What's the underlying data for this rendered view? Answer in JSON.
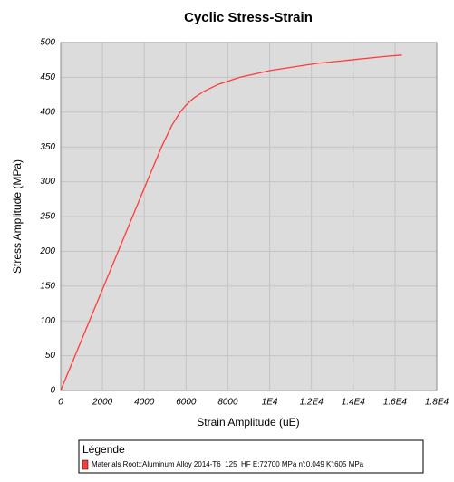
{
  "chart_data": {
    "type": "line",
    "title": "Cyclic Stress-Strain",
    "x_label": "Strain Amplitude (uE)",
    "y_label": "Stress Amplitude (MPa)",
    "legend_title": "Légende",
    "legend": "bottom",
    "grid": true,
    "xlim": [
      0,
      18000
    ],
    "ylim": [
      0,
      500
    ],
    "xticks": [
      0,
      2000,
      4000,
      6000,
      8000,
      {
        "value": 10000,
        "label": "1E4"
      },
      {
        "value": 12000,
        "label": "1.2E4"
      },
      {
        "value": 14000,
        "label": "1.4E4"
      },
      {
        "value": 16000,
        "label": "1.6E4"
      },
      {
        "value": 18000,
        "label": "1.8E4"
      }
    ],
    "yticks": [
      0,
      50,
      100,
      150,
      200,
      250,
      300,
      350,
      400,
      450,
      500
    ],
    "series": [
      {
        "name": "Materials Root::Aluminum Alloy 2014-T6_125_HF E:72700 MPa  n':0.049 K':605 MPa",
        "color": "#ff3b3b",
        "x": [
          0,
          1375,
          2751,
          4127,
          4828,
          5303,
          5717,
          5996,
          6357,
          6855,
          7552,
          8570,
          10057,
          12265,
          15500,
          16330
        ],
        "values": [
          0,
          100,
          200,
          300,
          350,
          380,
          400,
          410,
          420,
          430,
          440,
          450,
          460,
          470,
          480,
          482
        ]
      }
    ]
  }
}
